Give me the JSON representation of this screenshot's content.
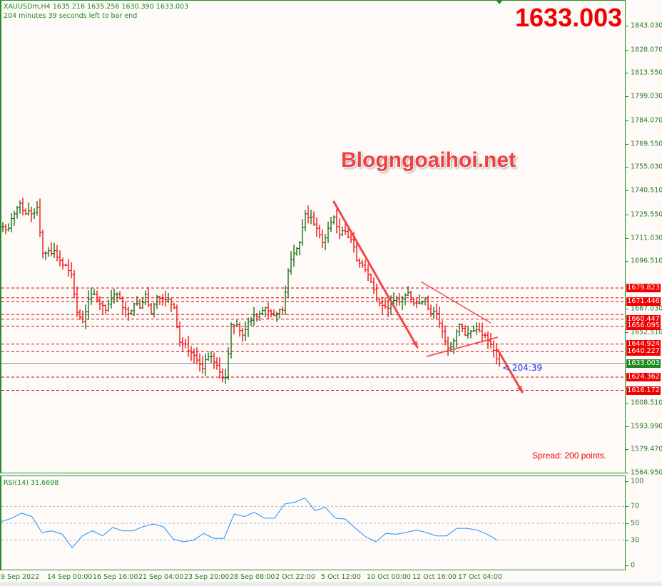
{
  "header": {
    "symbol_line": "XAUUSDm,H4  1635.216 1635.256 1630.390 1633.003",
    "timer": "204 minutes 39 seconds left to bar end"
  },
  "big_price": "1633.003",
  "watermark": "Blogngoaihoi.net",
  "spread": "Spread: 200 points.",
  "countdown": "< 204:39",
  "colors": {
    "up": "#0b650b",
    "down": "#f00000",
    "level_line": "#e00000",
    "current_line": "#8090a0",
    "rsi_line": "#1e90ff",
    "axis_text": "#2a7a2a"
  },
  "price_axis": [
    "1843.030",
    "1828.070",
    "1813.550",
    "1799.030",
    "1784.070",
    "1769.550",
    "1755.030",
    "1740.510",
    "1725.550",
    "1711.030",
    "1696.510",
    "1667.030",
    "1652.510",
    "1608.510",
    "1593.990",
    "1579.470",
    "1564.950"
  ],
  "levels": [
    "1679.823",
    "1671.446",
    "1660.447",
    "1656.095",
    "1644.924",
    "1640.227",
    "1624.362",
    "1616.172"
  ],
  "current_price": "1633.003",
  "rsi": {
    "title": "RSI(14) 31.6698",
    "axis": [
      "100",
      "70",
      "50",
      "30",
      "0"
    ]
  },
  "x_axis": [
    "9 Sep 2022",
    "14 Sep 00:00",
    "16 Sep 16:00",
    "21 Sep 04:00",
    "23 Sep 20:00",
    "28 Sep 08:00",
    "2 Oct 22:00",
    "5 Oct 12:00",
    "10 Oct 00:00",
    "12 Oct 16:00",
    "17 Oct 04:00"
  ],
  "chart_data": {
    "type": "ohlc-bar",
    "ylim": [
      1564.95,
      1843.03
    ],
    "closes": [
      1717.9,
      1717,
      1726,
      1732.6,
      1726,
      1726,
      1730,
      1701.5,
      1703,
      1703,
      1697,
      1694,
      1688,
      1664.7,
      1659,
      1673,
      1676,
      1670,
      1666,
      1673,
      1676,
      1667.5,
      1664,
      1670,
      1667.5,
      1676,
      1664,
      1674.5,
      1673,
      1673,
      1667.5,
      1646,
      1645,
      1639.5,
      1635,
      1629.7,
      1637,
      1633.7,
      1627.5,
      1624,
      1657,
      1657,
      1650.5,
      1659,
      1663,
      1664,
      1667.5,
      1664,
      1664,
      1666,
      1690.5,
      1701.5,
      1708,
      1726,
      1724,
      1717,
      1708,
      1717,
      1724,
      1713,
      1715,
      1710,
      1697,
      1694,
      1688,
      1679,
      1670.5,
      1668,
      1670.5,
      1673,
      1673,
      1677,
      1670.5,
      1670.5,
      1673,
      1664,
      1664,
      1653,
      1642.5,
      1647,
      1657,
      1650.5,
      1653,
      1654,
      1650.5,
      1647,
      1641,
      1633
    ],
    "rsi_values": [
      52,
      56,
      62,
      58,
      39,
      41,
      37,
      21,
      35,
      41,
      35,
      45,
      41,
      41,
      46,
      49,
      46,
      31,
      28,
      30,
      38,
      32,
      32,
      61,
      58,
      63,
      56,
      56,
      73,
      75,
      80,
      65,
      69,
      56,
      55,
      44,
      34,
      28,
      38,
      37,
      39,
      42,
      39,
      35,
      35,
      44,
      44,
      42,
      37,
      30
    ],
    "rsi_ylim": [
      0,
      100
    ],
    "rsi_levels": [
      70,
      50,
      30
    ]
  }
}
